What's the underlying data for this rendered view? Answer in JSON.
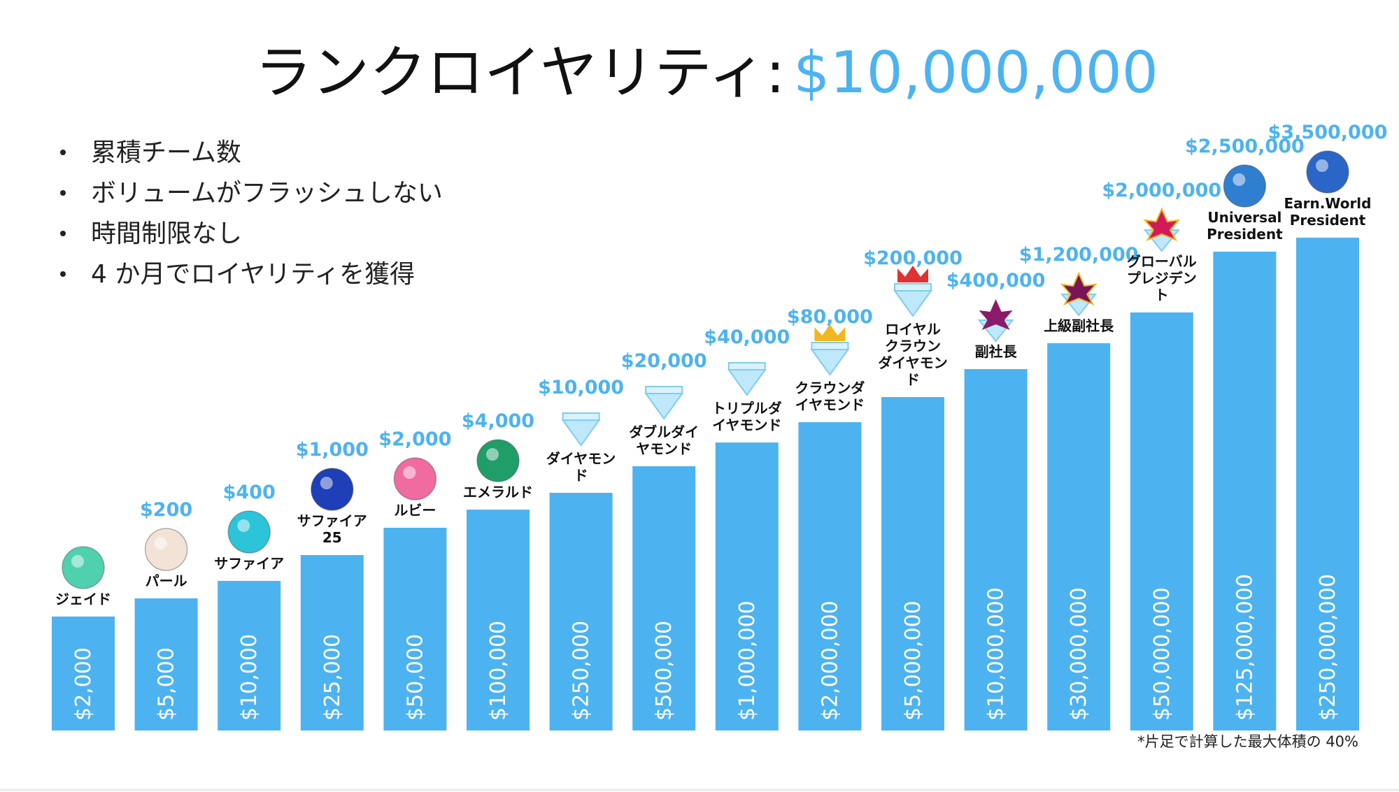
{
  "header": {
    "title": "ランクロイヤリティ:",
    "amount": "$10,000,000"
  },
  "bullets": [
    "累積チーム数",
    "ボリュームがフラッシュしない",
    "時間制限なし",
    "4 か月でロイヤリティを獲得"
  ],
  "ranks": [
    {
      "name": [
        "ジェイド"
      ],
      "volume": "$2,000"
    },
    {
      "name": [
        "パール"
      ],
      "reward": "$200",
      "volume": "$5,000"
    },
    {
      "name": [
        "サファイア"
      ],
      "reward": "$400",
      "volume": "$10,000"
    },
    {
      "name": [
        "サファイア",
        "25"
      ],
      "reward": "$1,000",
      "volume": "$25,000"
    },
    {
      "name": [
        "ルビー"
      ],
      "reward": "$2,000",
      "volume": "$50,000"
    },
    {
      "name": [
        "エメラルド"
      ],
      "reward": "$4,000",
      "volume": "$100,000"
    },
    {
      "name": [
        "ダイヤモン",
        "ド"
      ],
      "reward": "$10,000",
      "volume": "$250,000"
    },
    {
      "name": [
        "ダブルダイ",
        "ヤモンド"
      ],
      "reward": "$20,000",
      "volume": "$500,000"
    },
    {
      "name": [
        "トリプルダ",
        "イヤモンド"
      ],
      "reward": "$40,000",
      "volume": "$1,000,000"
    },
    {
      "name": [
        "クラウンダ",
        "イヤモンド"
      ],
      "reward": "$80,000",
      "volume": "$2,000,000"
    },
    {
      "name": [
        "ロイヤル",
        "クラウン",
        "ダイヤモン",
        "ド"
      ],
      "reward": "$200,000",
      "volume": "$5,000,000"
    },
    {
      "name": [
        "副社長"
      ],
      "reward": "$400,000",
      "volume": "$10,000,000"
    },
    {
      "name": [
        "上級副社長"
      ],
      "reward": "$1,200,000",
      "volume": "$30,000,000"
    },
    {
      "name": [
        "グローバル",
        "プレジデン",
        "ト"
      ],
      "reward": "$2,000,000",
      "volume": "$50,000,000"
    },
    {
      "name": [
        "Universal",
        "President"
      ],
      "reward": "$2,500,000",
      "volume": "$125,000,000"
    },
    {
      "name": [
        "Earn.World",
        "President"
      ],
      "reward": "$3,500,000",
      "volume": "$250,000,000"
    }
  ],
  "footnote": "*片足で計算した最大体積の 40%"
}
